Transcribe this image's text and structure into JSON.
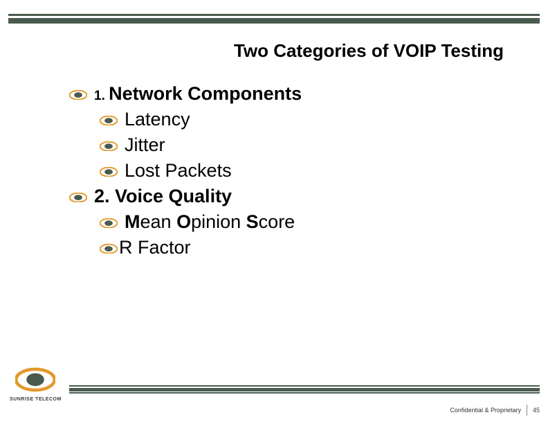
{
  "title": {
    "text": "Two Categories of VOIP Testing",
    "fontsize": 26,
    "color": "#000000",
    "weight": "bold"
  },
  "bullets": {
    "icon_colors": {
      "ring": "#e39a2a",
      "inner": "#4a5a4d"
    },
    "level1": [
      {
        "prefix": "1.",
        "prefix_size": 19,
        "text": "Network Components",
        "bold": true,
        "children": [
          {
            "text": "Latency"
          },
          {
            "text": "Jitter"
          },
          {
            "text": "Lost Packets"
          }
        ]
      },
      {
        "prefix": "",
        "text": "2. Voice Quality",
        "bold": true,
        "children": [
          {
            "html": "<span class='bold'>M</span>ean <span class='bold'>O</span>pinion <span class='bold'>S</span>core"
          },
          {
            "text": "R Factor",
            "tight": true
          }
        ]
      }
    ]
  },
  "theme": {
    "band_color": "#495b4d",
    "background": "#ffffff"
  },
  "logo": {
    "text": "SUNRISE TELECOM"
  },
  "footer": {
    "label": "Confidential & Proprietary",
    "page": "45"
  }
}
